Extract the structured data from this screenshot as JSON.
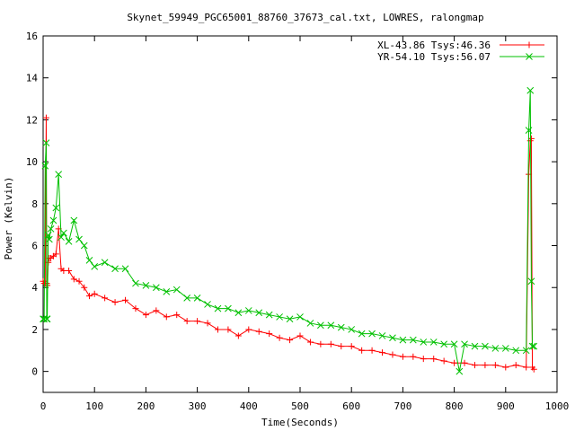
{
  "chart_data": {
    "type": "line",
    "title": "Skynet_59949_PGC65001_88760_37673_cal.txt, LOWRES, ralongmap",
    "xlabel": "Time(Seconds)",
    "ylabel": "Power (Kelvin)",
    "xlim": [
      0,
      1000
    ],
    "ylim": [
      -1,
      16
    ],
    "xticks": [
      0,
      100,
      200,
      300,
      400,
      500,
      600,
      700,
      800,
      900,
      1000
    ],
    "yticks": [
      0,
      2,
      4,
      6,
      8,
      10,
      12,
      14,
      16
    ],
    "grid": false,
    "legend_position": "top-right",
    "series": [
      {
        "name": "XL-43.86 Tsys:46.36",
        "color": "#ff0000",
        "marker": "plus",
        "x": [
          0,
          2,
          4,
          6,
          7,
          8,
          10,
          12,
          15,
          20,
          25,
          30,
          35,
          40,
          50,
          60,
          70,
          80,
          90,
          100,
          120,
          140,
          160,
          180,
          200,
          220,
          240,
          260,
          280,
          300,
          320,
          340,
          360,
          380,
          400,
          420,
          440,
          460,
          480,
          500,
          520,
          540,
          560,
          580,
          600,
          620,
          640,
          660,
          680,
          700,
          720,
          740,
          760,
          780,
          800,
          820,
          840,
          860,
          880,
          900,
          920,
          940,
          945,
          948,
          950,
          952,
          955
        ],
        "y": [
          4.3,
          4.2,
          4.2,
          12.1,
          4.2,
          4.1,
          5.2,
          5.4,
          5.4,
          5.5,
          5.6,
          6.8,
          4.9,
          4.8,
          4.8,
          4.4,
          4.3,
          4.0,
          3.6,
          3.7,
          3.5,
          3.3,
          3.4,
          3.0,
          2.7,
          2.9,
          2.6,
          2.7,
          2.4,
          2.4,
          2.3,
          2.0,
          2.0,
          1.7,
          2.0,
          1.9,
          1.8,
          1.6,
          1.5,
          1.7,
          1.4,
          1.3,
          1.3,
          1.2,
          1.2,
          1.0,
          1.0,
          0.9,
          0.8,
          0.7,
          0.7,
          0.6,
          0.6,
          0.5,
          0.4,
          0.4,
          0.3,
          0.3,
          0.3,
          0.2,
          0.3,
          0.2,
          9.4,
          11.0,
          11.1,
          0.2,
          0.1
        ]
      },
      {
        "name": "YR-54.10 Tsys:56.07",
        "color": "#00c000",
        "marker": "cross",
        "x": [
          0,
          2,
          4,
          6,
          7,
          8,
          10,
          12,
          15,
          20,
          25,
          30,
          35,
          40,
          50,
          60,
          70,
          80,
          90,
          100,
          120,
          140,
          160,
          180,
          200,
          220,
          240,
          260,
          280,
          300,
          320,
          340,
          360,
          380,
          400,
          420,
          440,
          460,
          480,
          500,
          520,
          540,
          560,
          580,
          600,
          620,
          640,
          660,
          680,
          700,
          720,
          740,
          760,
          780,
          800,
          810,
          820,
          840,
          860,
          880,
          900,
          920,
          940,
          945,
          948,
          950,
          952,
          955
        ],
        "y": [
          2.5,
          2.5,
          9.8,
          10.9,
          2.5,
          2.5,
          6.5,
          6.3,
          6.8,
          7.2,
          7.8,
          9.4,
          6.4,
          6.6,
          6.2,
          7.2,
          6.3,
          6.0,
          5.3,
          5.0,
          5.2,
          4.9,
          4.9,
          4.2,
          4.1,
          4.0,
          3.8,
          3.9,
          3.5,
          3.5,
          3.2,
          3.0,
          3.0,
          2.8,
          2.9,
          2.8,
          2.7,
          2.6,
          2.5,
          2.6,
          2.3,
          2.2,
          2.2,
          2.1,
          2.0,
          1.8,
          1.8,
          1.7,
          1.6,
          1.5,
          1.5,
          1.4,
          1.4,
          1.3,
          1.3,
          0.0,
          1.3,
          1.2,
          1.2,
          1.1,
          1.1,
          1.0,
          1.0,
          11.5,
          13.4,
          4.3,
          1.2,
          1.2
        ]
      }
    ]
  }
}
